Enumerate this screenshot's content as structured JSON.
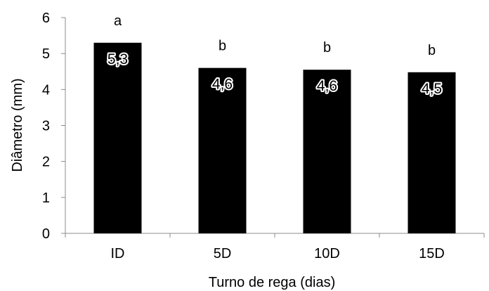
{
  "chart_data": {
    "type": "bar",
    "categories": [
      "ID",
      "5D",
      "10D",
      "15D"
    ],
    "values": [
      5.3,
      4.6,
      4.55,
      4.48
    ],
    "data_labels": [
      "5,3",
      "4,6",
      "4,6",
      "4,5"
    ],
    "significance_letters": [
      "a",
      "b",
      "b",
      "b"
    ],
    "title": "",
    "xlabel": "Turno de rega (dias)",
    "ylabel": "Diâmetro (mm)",
    "ylim": [
      0,
      6
    ],
    "yticks": [
      "0",
      "1",
      "2",
      "3",
      "4",
      "5",
      "6"
    ],
    "grid": false,
    "legend": "none",
    "colors": {
      "bar": "#000000",
      "axis": "#8c8c8c"
    }
  }
}
